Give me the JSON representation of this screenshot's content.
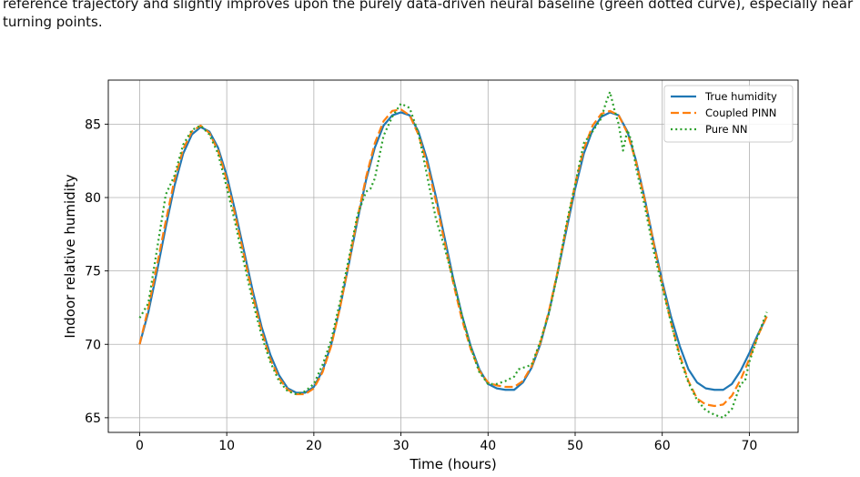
{
  "caption": {
    "line1": "reference trajectory and slightly improves upon the purely data-driven neural baseline (green dotted curve), especially near",
    "line2": "turning points."
  },
  "chart_data": {
    "type": "line",
    "title": "",
    "xlabel": "Time (hours)",
    "ylabel": "Indoor relative humidity",
    "xlim": [
      -3.6,
      75.6
    ],
    "ylim": [
      64.0,
      88.0
    ],
    "xticks": [
      0,
      10,
      20,
      30,
      40,
      50,
      60,
      70
    ],
    "yticks": [
      65,
      70,
      75,
      80,
      85
    ],
    "grid": true,
    "legend_position": "top-right",
    "series": [
      {
        "name": "True humidity",
        "style": "solid",
        "color": "#1f77b4",
        "x": [
          0,
          1,
          2,
          3,
          4,
          5,
          6,
          7,
          8,
          9,
          10,
          11,
          12,
          13,
          14,
          15,
          16,
          17,
          18,
          19,
          20,
          21,
          22,
          23,
          24,
          25,
          26,
          27,
          28,
          29,
          30,
          31,
          32,
          33,
          34,
          35,
          36,
          37,
          38,
          39,
          40,
          41,
          42,
          43,
          44,
          45,
          46,
          47,
          48,
          49,
          50,
          51,
          52,
          53,
          54,
          55,
          56,
          57,
          58,
          59,
          60,
          61,
          62,
          63,
          64,
          65,
          66,
          67,
          68,
          69,
          70,
          71,
          72
        ],
        "y": [
          70.0,
          72.2,
          75.0,
          78.0,
          80.8,
          83.0,
          84.3,
          84.8,
          84.5,
          83.4,
          81.5,
          79.0,
          76.3,
          73.6,
          71.2,
          69.3,
          67.9,
          67.0,
          66.7,
          66.7,
          67.1,
          68.2,
          70.0,
          72.5,
          75.4,
          78.4,
          81.2,
          83.4,
          84.9,
          85.6,
          85.8,
          85.6,
          84.5,
          82.6,
          80.1,
          77.3,
          74.5,
          72.0,
          69.9,
          68.3,
          67.3,
          67.0,
          66.9,
          66.9,
          67.4,
          68.4,
          70.0,
          72.2,
          74.9,
          77.8,
          80.6,
          83.0,
          84.6,
          85.5,
          85.8,
          85.6,
          84.5,
          82.5,
          79.9,
          77.0,
          74.3,
          71.9,
          69.9,
          68.3,
          67.4,
          67.0,
          66.9,
          66.9,
          67.3,
          68.2,
          69.4,
          70.7,
          71.9
        ]
      },
      {
        "name": "Coupled PINN",
        "style": "dashed",
        "color": "#ff7f0e",
        "x": [
          0,
          1,
          2,
          3,
          4,
          5,
          6,
          7,
          8,
          9,
          10,
          11,
          12,
          13,
          14,
          15,
          16,
          17,
          18,
          19,
          20,
          21,
          22,
          23,
          24,
          25,
          26,
          27,
          28,
          29,
          30,
          31,
          32,
          33,
          34,
          35,
          36,
          37,
          38,
          39,
          40,
          41,
          42,
          43,
          44,
          45,
          46,
          47,
          48,
          49,
          50,
          51,
          52,
          53,
          54,
          55,
          56,
          57,
          58,
          59,
          60,
          61,
          62,
          63,
          64,
          65,
          66,
          67,
          68,
          69,
          70,
          71,
          72
        ],
        "y": [
          70.0,
          72.5,
          75.4,
          78.4,
          81.2,
          83.3,
          84.5,
          84.9,
          84.4,
          83.2,
          81.2,
          78.7,
          76.0,
          73.3,
          70.9,
          69.0,
          67.7,
          66.9,
          66.6,
          66.6,
          67.0,
          68.1,
          69.9,
          72.5,
          75.5,
          78.6,
          81.4,
          83.7,
          85.2,
          85.9,
          86.0,
          85.6,
          84.3,
          82.3,
          79.8,
          77.0,
          74.2,
          71.7,
          69.7,
          68.2,
          67.4,
          67.2,
          67.1,
          67.1,
          67.5,
          68.5,
          70.1,
          72.3,
          75.0,
          78.0,
          80.9,
          83.3,
          84.9,
          85.7,
          85.9,
          85.6,
          84.4,
          82.4,
          79.8,
          76.9,
          74.1,
          71.5,
          69.3,
          67.5,
          66.3,
          65.9,
          65.8,
          65.9,
          66.5,
          67.6,
          69.0,
          70.6,
          71.9
        ]
      },
      {
        "name": "Pure NN",
        "style": "dotted",
        "color": "#2ca02c",
        "x": [
          0,
          1,
          2,
          3,
          4,
          5,
          6,
          7,
          8,
          9,
          10,
          11,
          12,
          13,
          14,
          15,
          16,
          17,
          18,
          19,
          20,
          21,
          22,
          23,
          24,
          25,
          26,
          26.5,
          27,
          28,
          29,
          30,
          31,
          32,
          33,
          34,
          35,
          36,
          37,
          38,
          39,
          40,
          41,
          42,
          43,
          43.5,
          44,
          45,
          46,
          47,
          48,
          49,
          50,
          51,
          52,
          53,
          53.5,
          54,
          54.5,
          55,
          55.5,
          56,
          56.5,
          57,
          58,
          59,
          60,
          61,
          62,
          63,
          64,
          65,
          66,
          67,
          68,
          69,
          69.5,
          70,
          71,
          72
        ],
        "y": [
          71.8,
          72.8,
          76.5,
          80.2,
          81.5,
          83.6,
          84.6,
          84.9,
          84.3,
          83.0,
          80.7,
          78.2,
          75.5,
          72.9,
          70.6,
          68.8,
          67.5,
          66.8,
          66.6,
          66.8,
          67.3,
          68.6,
          70.3,
          72.9,
          75.8,
          78.8,
          80.4,
          80.6,
          81.3,
          84.2,
          85.5,
          86.4,
          86.1,
          84.4,
          81.5,
          78.6,
          76.6,
          74.4,
          72.0,
          69.8,
          68.1,
          67.3,
          67.3,
          67.5,
          67.8,
          68.3,
          68.4,
          68.6,
          70.2,
          72.1,
          74.9,
          78.2,
          80.9,
          83.7,
          84.5,
          85.4,
          86.4,
          87.2,
          86.0,
          85.0,
          83.2,
          84.6,
          83.8,
          82.0,
          79.4,
          76.4,
          73.9,
          71.5,
          69.1,
          67.4,
          66.2,
          65.5,
          65.2,
          65.0,
          65.6,
          67.3,
          67.5,
          68.8,
          70.6,
          72.2
        ]
      }
    ]
  }
}
